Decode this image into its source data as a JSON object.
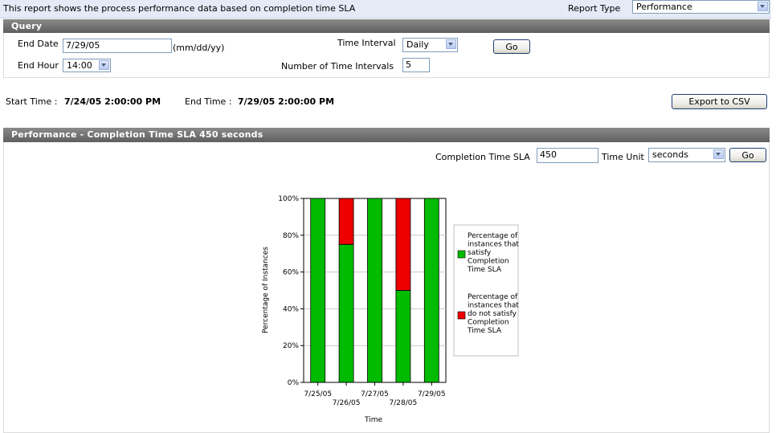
{
  "header": {
    "description": "This report shows the process performance data based on completion time SLA",
    "report_type_label": "Report Type",
    "report_type_value": "Performance"
  },
  "query": {
    "title": "Query",
    "end_date_label": "End Date",
    "end_date_value": "7/29/05",
    "end_date_hint": "(mm/dd/yy)",
    "end_hour_label": "End Hour",
    "end_hour_value": "14:00",
    "time_interval_label": "Time Interval",
    "time_interval_value": "Daily",
    "num_intervals_label": "Number of Time Intervals",
    "num_intervals_value": "5",
    "go_label": "Go"
  },
  "times": {
    "start_label": "Start Time :",
    "start_value": "7/24/05 2:00:00 PM",
    "end_label": "End Time :",
    "end_value": "7/29/05 2:00:00 PM",
    "export_label": "Export to CSV"
  },
  "performance": {
    "title": "Performance - Completion Time SLA 450 seconds",
    "sla_label": "Completion Time SLA",
    "sla_value": "450",
    "unit_label": "Time Unit",
    "unit_value": "seconds",
    "go_label": "Go"
  },
  "colors": {
    "satisfy": "#00bb00",
    "not_satisfy": "#ee0000",
    "header": "#6e6e6e"
  },
  "chart_data": {
    "type": "bar",
    "stacked": true,
    "categories": [
      "7/25/05",
      "7/26/05",
      "7/27/05",
      "7/28/05",
      "7/29/05"
    ],
    "series": [
      {
        "name": "Percentage of instances that satisfy Completion Time SLA",
        "values": [
          100,
          75,
          100,
          50,
          100
        ]
      },
      {
        "name": "Percentage of instances that do not satisfy Completion Time SLA",
        "values": [
          0,
          25,
          0,
          50,
          0
        ]
      }
    ],
    "xlabel": "Time",
    "ylabel": "Percentage of Instances",
    "ylim": [
      0,
      100
    ],
    "yticks": [
      "0%",
      "20%",
      "40%",
      "60%",
      "80%",
      "100%"
    ],
    "grid": true,
    "legend_position": "right"
  }
}
